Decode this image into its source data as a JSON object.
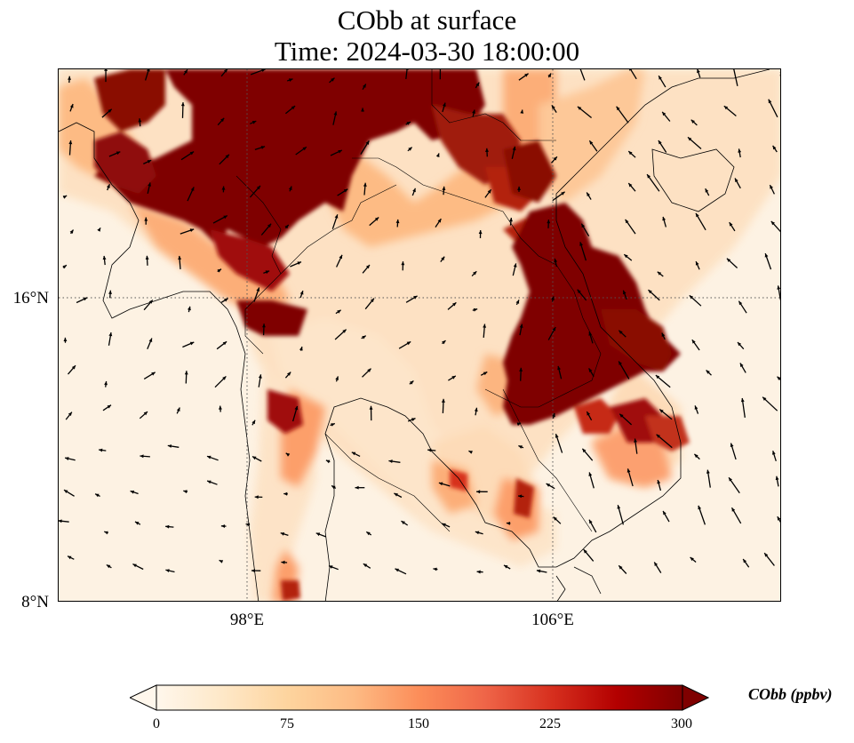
{
  "title": {
    "line1": "CObb at surface",
    "line2": "Time: 2024-03-30 18:00:00"
  },
  "map": {
    "lat_ticks": [
      "16°N",
      "8°N"
    ],
    "lon_ticks": [
      "98°E",
      "106°E"
    ],
    "gridlines": "dotted",
    "background_color": "#fdf2e3",
    "vector_field": "wind arrows"
  },
  "colorbar": {
    "label": "CObb (ppbv)",
    "ticks": [
      "0",
      "75",
      "150",
      "225",
      "300"
    ],
    "range": [
      0,
      300
    ],
    "extend": "both",
    "colormap": "OrRd",
    "colors": [
      "#fff7ec",
      "#fee8c8",
      "#fdd49e",
      "#fdbb84",
      "#fc8d59",
      "#ef6548",
      "#d7301f",
      "#b30000",
      "#7f0000"
    ]
  }
}
